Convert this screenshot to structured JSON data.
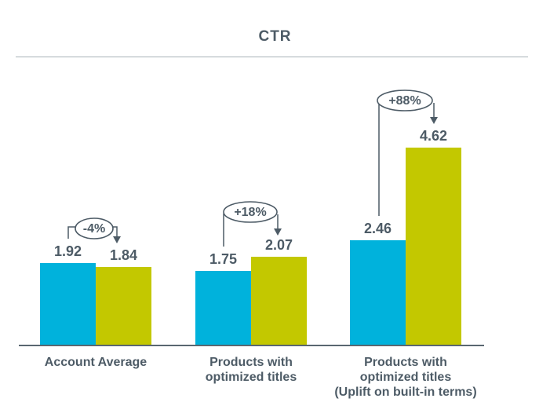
{
  "chart": {
    "title": "CTR"
  },
  "chart_data": {
    "type": "bar",
    "title": "CTR",
    "categories": [
      [
        "Account Average"
      ],
      [
        "Products with",
        "optimized titles"
      ],
      [
        "Products with",
        "optimized titles",
        "(Uplift on built-in terms)"
      ]
    ],
    "series": [
      {
        "color": "#00b2dc",
        "values": [
          1.92,
          1.75,
          2.46
        ]
      },
      {
        "color": "#c3c800",
        "values": [
          1.84,
          2.07,
          4.62
        ]
      }
    ],
    "value_labels": [
      [
        "1.92",
        "1.84"
      ],
      [
        "1.75",
        "2.07"
      ],
      [
        "2.46",
        "4.62"
      ]
    ],
    "annotations": [
      {
        "label": "-4%"
      },
      {
        "label": "+18%"
      },
      {
        "label": "+88%"
      }
    ],
    "ylim": [
      0,
      5
    ],
    "grid": false,
    "legend_visible": false
  },
  "colors": {
    "text": "#4d5b66",
    "series_1": "#00b2dc",
    "series_2": "#c3c800",
    "title_rule": "#a8b2b8",
    "axis_line": "#5a6771",
    "annotation_stroke": "#4d5b66"
  }
}
